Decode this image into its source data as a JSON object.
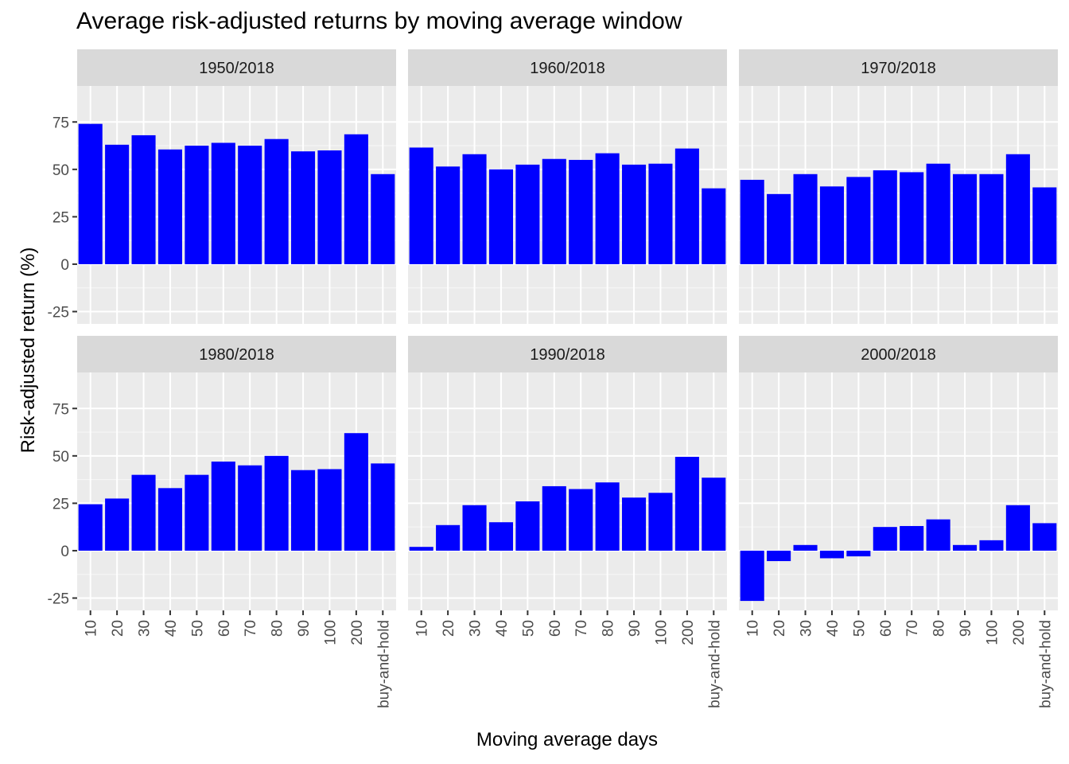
{
  "chart_data": {
    "type": "bar",
    "title": "Average risk-adjusted returns by moving average window",
    "xlabel": "Moving average days",
    "ylabel": "Risk-adjusted return (%)",
    "categories": [
      "10",
      "20",
      "30",
      "40",
      "50",
      "60",
      "70",
      "80",
      "90",
      "100",
      "200",
      "buy-and-hold"
    ],
    "yticks": [
      -25,
      0,
      25,
      50,
      75
    ],
    "ylim": [
      -31.5,
      94
    ],
    "bar_color": "#0000ff",
    "panel_background": "#ebebeb",
    "strip_background": "#d9d9d9",
    "facets": [
      {
        "name": "1950/2018",
        "values": [
          74,
          63,
          68,
          60.5,
          62.5,
          64,
          62.5,
          66,
          59.5,
          60,
          68.5,
          47.5
        ]
      },
      {
        "name": "1960/2018",
        "values": [
          61.5,
          51.5,
          58,
          50,
          52.5,
          55.5,
          55,
          58.5,
          52.5,
          53,
          61,
          40
        ]
      },
      {
        "name": "1970/2018",
        "values": [
          44.5,
          37,
          47.5,
          41,
          46,
          49.5,
          48.5,
          53,
          47.5,
          47.5,
          58,
          40.5
        ]
      },
      {
        "name": "1980/2018",
        "values": [
          24.5,
          27.5,
          40,
          33,
          40,
          47,
          45,
          50,
          42.5,
          43,
          62,
          46
        ]
      },
      {
        "name": "1990/2018",
        "values": [
          2,
          13.5,
          24,
          15,
          26,
          34,
          32.5,
          36,
          28,
          30.5,
          49.5,
          38.5
        ]
      },
      {
        "name": "2000/2018",
        "values": [
          -26.5,
          -5.5,
          3,
          -4,
          -3,
          12.5,
          13,
          16.5,
          3,
          5.5,
          24,
          14.5
        ]
      }
    ]
  }
}
